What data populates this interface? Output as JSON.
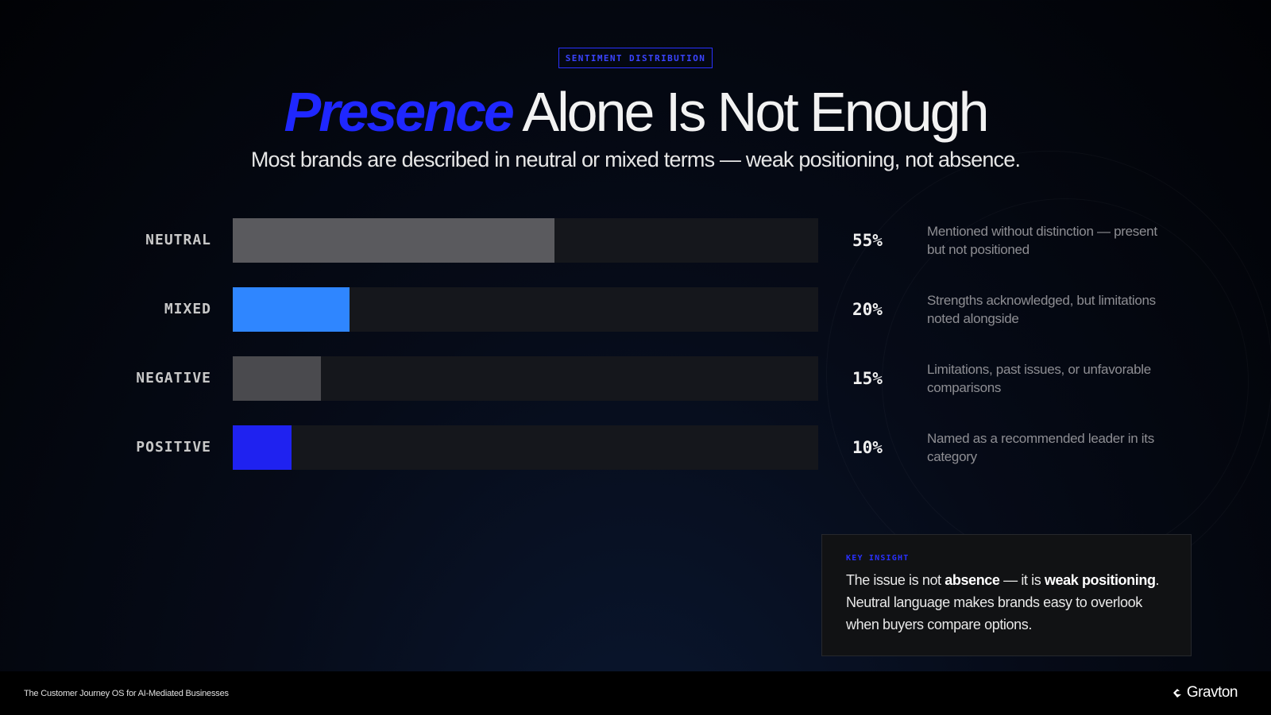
{
  "eyebrow": "SENTIMENT DISTRIBUTION",
  "title": {
    "accent": "Presence",
    "rest": "Alone Is Not Enough"
  },
  "subtitle": "Most brands are described in neutral or mixed terms — weak positioning, not absence.",
  "chart_data": {
    "type": "bar",
    "orientation": "horizontal",
    "title": "",
    "categories": [
      "NEUTRAL",
      "MIXED",
      "NEGATIVE",
      "POSITIVE"
    ],
    "values": [
      55,
      20,
      15,
      10
    ],
    "value_labels": [
      "55%",
      "20%",
      "15%",
      "10%"
    ],
    "descriptions": [
      "Mentioned without distinction — present but not positioned",
      "Strengths acknowledged, but limitations noted alongside",
      "Limitations, past issues, or unfavorable comparisons",
      "Named as a recommended leader in its category"
    ],
    "colors": [
      "#5a5a5e",
      "#2f86ff",
      "#4a4a4e",
      "#1f22f0"
    ],
    "xlim": [
      0,
      100
    ],
    "grid": false,
    "legend": "none"
  },
  "insight": {
    "label": "KEY INSIGHT",
    "line_a": "The issue is not ",
    "bold_a": "absence",
    "line_b": " — it is ",
    "bold_b": "weak positioning",
    "line_c": ". Neutral language makes brands easy to overlook when buyers compare options."
  },
  "footer": {
    "tagline": "The Customer Journey OS for AI-Mediated Businesses",
    "brand": "Gravton",
    "brand_icon": "gravton-logo-icon"
  },
  "colors": {
    "accent": "#1f27ff",
    "background": "#010205"
  }
}
